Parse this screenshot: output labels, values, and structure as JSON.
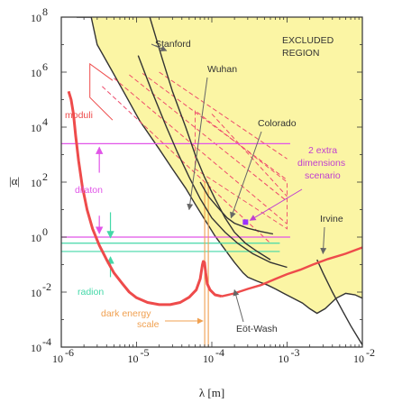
{
  "chart_data": {
    "type": "line",
    "xlabel": "λ [m]",
    "ylabel": "|α|",
    "x_scale": "log",
    "y_scale": "log",
    "xlim": [
      1e-06,
      0.01
    ],
    "ylim": [
      0.0001,
      100000000.0
    ],
    "x_ticks": [
      {
        "value": 1e-06,
        "base": "10",
        "exp": "-6"
      },
      {
        "value": 1e-05,
        "base": "10",
        "exp": "-5"
      },
      {
        "value": 0.0001,
        "base": "10",
        "exp": "-4"
      },
      {
        "value": 0.001,
        "base": "10",
        "exp": "-3"
      },
      {
        "value": 0.01,
        "base": "10",
        "exp": "-2"
      }
    ],
    "y_ticks": [
      {
        "value": 0.0001,
        "base": "10",
        "exp": "-4"
      },
      {
        "value": 0.01,
        "base": "10",
        "exp": "-2"
      },
      {
        "value": 1.0,
        "base": "10",
        "exp": "0"
      },
      {
        "value": 100.0,
        "base": "10",
        "exp": "2"
      },
      {
        "value": 10000.0,
        "base": "10",
        "exp": "4"
      },
      {
        "value": 1000000.0,
        "base": "10",
        "exp": "6"
      },
      {
        "value": 100000000.0,
        "base": "10",
        "exp": "8"
      }
    ],
    "colors": {
      "excluded_fill": "#fbf5a4",
      "curve": "#333333",
      "moduli": "#ee4b4b",
      "dilaton": "#e155e8",
      "radion": "#43d8a8",
      "dark_energy": "#f0a050",
      "extra_dim": "#ee4b6b",
      "extra_dim_label": "#c040d0",
      "point": "#9b30ff"
    },
    "excluded_region": {
      "label_line1": "EXCLUDED",
      "label_line2": "REGION",
      "boundary": [
        [
          1.6e-06,
          100000000.0
        ],
        [
          2.5e-06,
          100000000.0
        ],
        [
          3e-06,
          10000000.0
        ],
        [
          4.5e-06,
          1400000.0
        ],
        [
          7e-06,
          160000.0
        ],
        [
          1.1e-05,
          17000.0
        ],
        [
          2e-05,
          1600
        ],
        [
          3e-05,
          300
        ],
        [
          4.5e-05,
          60
        ],
        [
          6e-05,
          16
        ],
        [
          8e-05,
          4.5
        ],
        [
          0.00011,
          1.1
        ],
        [
          0.00015,
          0.35
        ],
        [
          0.0002,
          0.12
        ],
        [
          0.00026,
          0.05
        ],
        [
          0.0003,
          0.035
        ],
        [
          0.0004,
          0.025
        ],
        [
          0.00055,
          0.018
        ],
        [
          0.0007,
          0.013
        ],
        [
          0.0009,
          0.009
        ],
        [
          0.0012,
          0.006
        ],
        [
          0.0016,
          0.004
        ],
        [
          0.002,
          0.0025
        ],
        [
          0.0025,
          0.0017
        ],
        [
          0.0032,
          0.0025
        ],
        [
          0.0045,
          0.006
        ],
        [
          0.006,
          0.009
        ],
        [
          0.008,
          0.008
        ],
        [
          0.01,
          0.006
        ]
      ]
    },
    "series": [
      {
        "name": "Stanford",
        "points": [
          [
            1.5e-05,
            100000000.0
          ],
          [
            2.2e-05,
            3000000.0
          ],
          [
            3e-05,
            200000.0
          ],
          [
            4.5e-05,
            10000.0
          ],
          [
            6e-05,
            1000.0
          ],
          [
            8e-05,
            150
          ],
          [
            0.00011,
            25
          ],
          [
            0.00015,
            5
          ],
          [
            0.0002,
            1.5
          ],
          [
            0.00028,
            0.6
          ],
          [
            0.0004,
            0.3
          ],
          [
            0.0006,
            0.15
          ]
        ]
      },
      {
        "name": "Wuhan",
        "points": [
          [
            1.05e-05,
            4000000.0
          ],
          [
            1.6e-05,
            200000.0
          ],
          [
            2.5e-05,
            10000.0
          ],
          [
            3.5e-05,
            1200.0
          ],
          [
            5e-05,
            150
          ],
          [
            7e-05,
            25
          ],
          [
            0.0001,
            5
          ],
          [
            0.00015,
            1.5
          ],
          [
            0.00022,
            0.6
          ],
          [
            0.00035,
            0.25
          ],
          [
            0.0006,
            0.12
          ],
          [
            0.001,
            0.08
          ]
        ]
      },
      {
        "name": "Colorado",
        "points": [
          [
            7e-05,
            100
          ],
          [
            9e-05,
            30
          ],
          [
            0.00012,
            12
          ],
          [
            0.00016,
            5
          ],
          [
            0.0002,
            3.2
          ],
          [
            0.0003,
            2.1
          ],
          [
            0.00045,
            1.6
          ],
          [
            0.00065,
            1.3
          ]
        ]
      },
      {
        "name": "Irvine",
        "points": [
          [
            0.0025,
            0.15
          ],
          [
            0.003,
            0.05
          ],
          [
            0.004,
            0.01
          ],
          [
            0.0055,
            0.002
          ],
          [
            0.007,
            0.0006
          ],
          [
            0.0085,
            0.00025
          ],
          [
            0.01,
            0.00012
          ]
        ]
      },
      {
        "name": "Eöt-Wash",
        "points": [
          [
            0.000135,
            0.007
          ],
          [
            0.0002,
            0.009
          ],
          [
            0.0003,
            0.013
          ],
          [
            0.00045,
            0.018
          ],
          [
            0.0007,
            0.03
          ],
          [
            0.001,
            0.045
          ],
          [
            0.0015,
            0.065
          ],
          [
            0.0022,
            0.1
          ],
          [
            0.0035,
            0.16
          ],
          [
            0.006,
            0.25
          ],
          [
            0.01,
            0.42
          ]
        ]
      }
    ],
    "moduli_curve": [
      [
        1.25e-06,
        200000.0
      ],
      [
        1.35e-06,
        100000.0
      ],
      [
        1.45e-06,
        30000.0
      ],
      [
        1.55e-06,
        5000.0
      ],
      [
        1.7e-06,
        600
      ],
      [
        1.9e-06,
        70
      ],
      [
        2.2e-06,
        10
      ],
      [
        2.6e-06,
        2
      ],
      [
        3.2e-06,
        0.5
      ],
      [
        4e-06,
        0.15
      ],
      [
        5e-06,
        0.05
      ],
      [
        6.5e-06,
        0.02
      ],
      [
        8e-06,
        0.01
      ],
      [
        1e-05,
        0.0062
      ],
      [
        1.4e-05,
        0.0042
      ],
      [
        2e-05,
        0.0035
      ],
      [
        2.8e-05,
        0.0035
      ],
      [
        3.8e-05,
        0.0042
      ],
      [
        5e-05,
        0.0065
      ],
      [
        6.2e-05,
        0.012
      ],
      [
        7e-05,
        0.03
      ],
      [
        7.5e-05,
        0.1
      ],
      [
        7.7e-05,
        0.13
      ],
      [
        8e-05,
        0.12
      ],
      [
        8.3e-05,
        0.05
      ],
      [
        8.7e-05,
        0.02
      ],
      [
        9.5e-05,
        0.012
      ],
      [
        0.00011,
        0.008
      ],
      [
        0.000135,
        0.007
      ]
    ],
    "moduli_box": [
      [
        4.8e-06,
        500000.0
      ],
      [
        4.8e-06,
        18000.0
      ],
      [
        2.4e-06,
        2000000.0
      ],
      [
        2.4e-06,
        120000.0
      ]
    ],
    "dilaton_band": {
      "y_top": 2500,
      "y_bottom": 1,
      "x_start": 1e-06,
      "x_end": 0.0011,
      "arrow_x": 3.2e-06
    },
    "radion_band": {
      "y_top": 0.6,
      "y_bottom": 0.3,
      "x_start": 1e-06,
      "x_end": 0.0008,
      "arrow_x": 4.5e-06
    },
    "dark_energy_line": {
      "x": 8.5e-05,
      "y_from": 0.0001,
      "y_to": 100
    },
    "extra_dim_point": {
      "x": 0.00028,
      "y": 3.5
    },
    "annotations": {
      "stanford": "Stanford",
      "wuhan": "Wuhan",
      "colorado": "Colorado",
      "extra_dim_line1": "2 extra",
      "extra_dim_line2": "dimensions",
      "extra_dim_line3": "scenario",
      "irvine": "Irvine",
      "eotwash": "Eöt-Wash",
      "moduli": "moduli",
      "dilaton": "dilaton",
      "radion": "radion",
      "dark_energy_line1": "dark energy",
      "dark_energy_line2": "scale"
    }
  }
}
